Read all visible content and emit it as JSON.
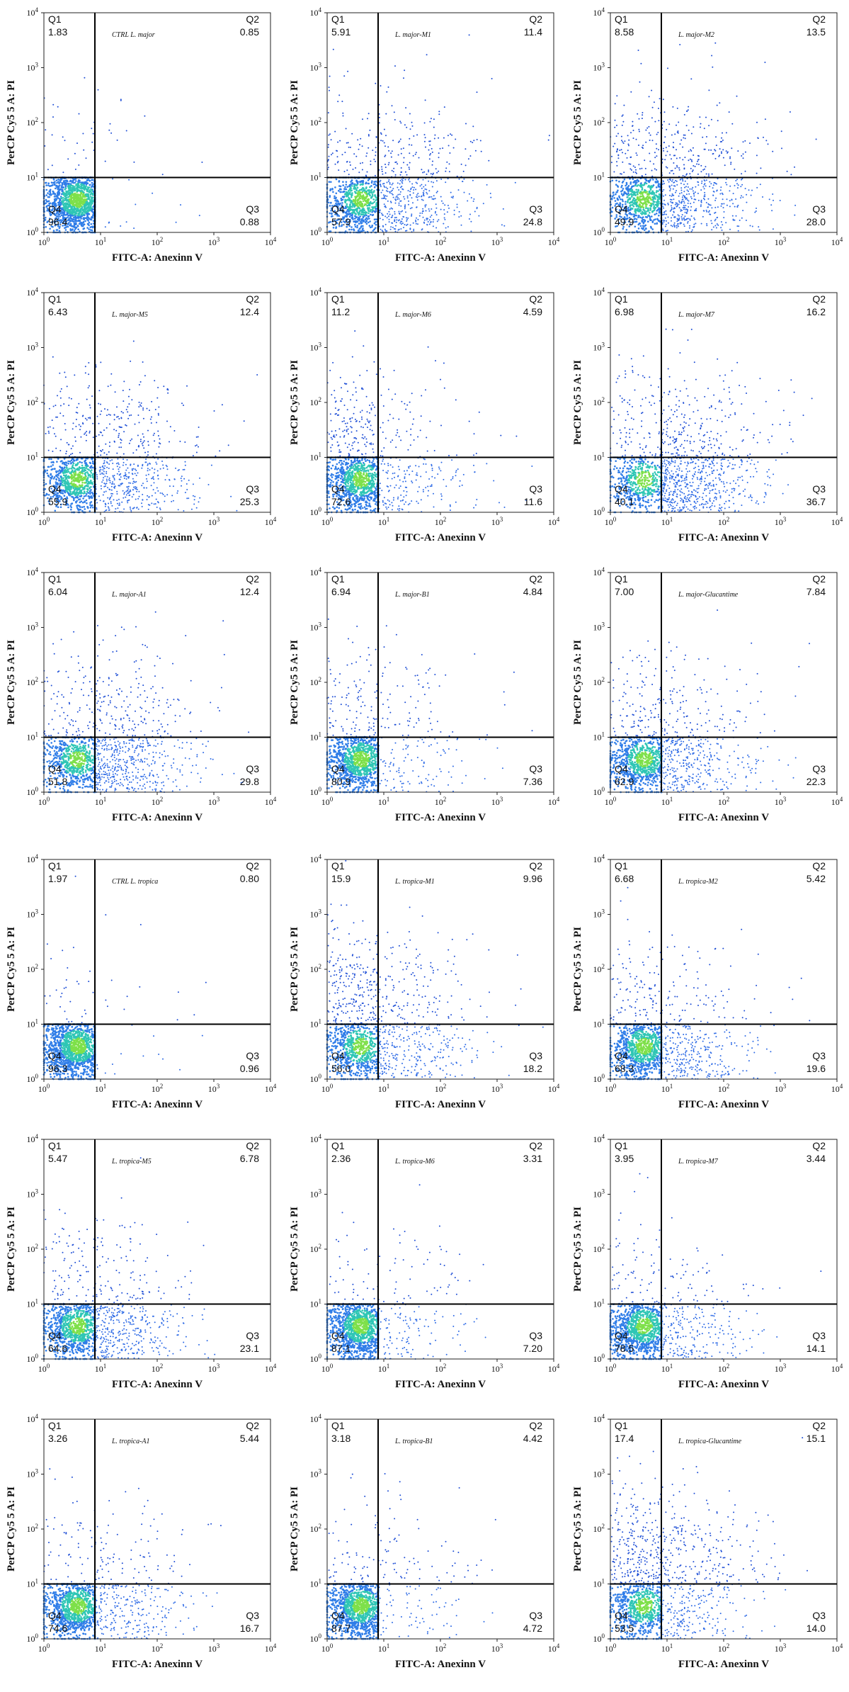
{
  "chart_data": [
    {
      "type": "scatter",
      "sample": "CTRL L. major",
      "xlabel": "FITC-A: Anexinn V",
      "ylabel": "PerCP Cy5 5 A: PI",
      "quadrant_labels": {
        "q1": "Q1",
        "q2": "Q2",
        "q3": "Q3",
        "q4": "Q4"
      },
      "quadrants": {
        "q1": "1.83",
        "q2": "0.85",
        "q3": "0.88",
        "q4": "96.4"
      },
      "x_ticks": [
        "10^0",
        "10^1",
        "10^2",
        "10^3",
        "10^4"
      ],
      "y_ticks": [
        "10^0",
        "10^1",
        "10^2",
        "10^3",
        "10^4"
      ]
    },
    {
      "type": "scatter",
      "sample": "L. major-M1",
      "xlabel": "FITC-A: Anexinn V",
      "ylabel": "PerCP Cy5 5 A: PI",
      "quadrant_labels": {
        "q1": "Q1",
        "q2": "Q2",
        "q3": "Q3",
        "q4": "Q4"
      },
      "quadrants": {
        "q1": "5.91",
        "q2": "11.4",
        "q3": "24.8",
        "q4": "57.9"
      },
      "x_ticks": [
        "10^0",
        "10^1",
        "10^2",
        "10^3",
        "10^4"
      ],
      "y_ticks": [
        "10^0",
        "10^1",
        "10^2",
        "10^3",
        "10^4"
      ]
    },
    {
      "type": "scatter",
      "sample": "L. major-M2",
      "xlabel": "FITC-A: Anexinn V",
      "ylabel": "PerCP Cy5 5 A: PI",
      "quadrant_labels": {
        "q1": "Q1",
        "q2": "Q2",
        "q3": "Q3",
        "q4": "Q4"
      },
      "quadrants": {
        "q1": "8.58",
        "q2": "13.5",
        "q3": "28.0",
        "q4": "49.9"
      },
      "x_ticks": [
        "10^0",
        "10^1",
        "10^2",
        "10^3",
        "10^4"
      ],
      "y_ticks": [
        "10^0",
        "10^1",
        "10^2",
        "10^3",
        "10^4"
      ]
    },
    {
      "type": "scatter",
      "sample": "L. major-M5",
      "xlabel": "FITC-A: Anexinn V",
      "ylabel": "PerCP Cy5 5 A: PI",
      "quadrant_labels": {
        "q1": "Q1",
        "q2": "Q2",
        "q3": "Q3",
        "q4": "Q4"
      },
      "quadrants": {
        "q1": "6.43",
        "q2": "12.4",
        "q3": "25.3",
        "q4": "55.9"
      },
      "x_ticks": [
        "10^0",
        "10^1",
        "10^2",
        "10^3",
        "10^4"
      ],
      "y_ticks": [
        "10^0",
        "10^1",
        "10^2",
        "10^3",
        "10^4"
      ]
    },
    {
      "type": "scatter",
      "sample": "L. major-M6",
      "xlabel": "FITC-A: Anexinn V",
      "ylabel": "PerCP Cy5 5 A: PI",
      "quadrant_labels": {
        "q1": "Q1",
        "q2": "Q2",
        "q3": "Q3",
        "q4": "Q4"
      },
      "quadrants": {
        "q1": "11.2",
        "q2": "4.59",
        "q3": "11.6",
        "q4": "72.6"
      },
      "x_ticks": [
        "10^0",
        "10^1",
        "10^2",
        "10^3",
        "10^4"
      ],
      "y_ticks": [
        "10^0",
        "10^1",
        "10^2",
        "10^3",
        "10^4"
      ]
    },
    {
      "type": "scatter",
      "sample": "L. major-M7",
      "xlabel": "FITC-A: Anexinn V",
      "ylabel": "PerCP Cy5 5 A: PI",
      "quadrant_labels": {
        "q1": "Q1",
        "q2": "Q2",
        "q3": "Q3",
        "q4": "Q4"
      },
      "quadrants": {
        "q1": "6.98",
        "q2": "16.2",
        "q3": "36.7",
        "q4": "40.1"
      },
      "x_ticks": [
        "10^0",
        "10^1",
        "10^2",
        "10^3",
        "10^4"
      ],
      "y_ticks": [
        "10^0",
        "10^1",
        "10^2",
        "10^3",
        "10^4"
      ]
    },
    {
      "type": "scatter",
      "sample": "L. major-A1",
      "xlabel": "FITC-A: Anexinn V",
      "ylabel": "PerCP Cy5 5 A: PI",
      "quadrant_labels": {
        "q1": "Q1",
        "q2": "Q2",
        "q3": "Q3",
        "q4": "Q4"
      },
      "quadrants": {
        "q1": "6.04",
        "q2": "12.4",
        "q3": "29.8",
        "q4": "51.8"
      },
      "x_ticks": [
        "10^0",
        "10^1",
        "10^2",
        "10^3",
        "10^4"
      ],
      "y_ticks": [
        "10^0",
        "10^1",
        "10^2",
        "10^3",
        "10^4"
      ]
    },
    {
      "type": "scatter",
      "sample": "L. major-B1",
      "xlabel": "FITC-A: Anexinn V",
      "ylabel": "PerCP Cy5 5 A: PI",
      "quadrant_labels": {
        "q1": "Q1",
        "q2": "Q2",
        "q3": "Q3",
        "q4": "Q4"
      },
      "quadrants": {
        "q1": "6.94",
        "q2": "4.84",
        "q3": "7.36",
        "q4": "80.9"
      },
      "x_ticks": [
        "10^0",
        "10^1",
        "10^2",
        "10^3",
        "10^4"
      ],
      "y_ticks": [
        "10^0",
        "10^1",
        "10^2",
        "10^3",
        "10^4"
      ]
    },
    {
      "type": "scatter",
      "sample": "L. major-Glucantime",
      "xlabel": "FITC-A: Anexinn V",
      "ylabel": "PerCP Cy5 5 A: PI",
      "quadrant_labels": {
        "q1": "Q1",
        "q2": "Q2",
        "q3": "Q3",
        "q4": "Q4"
      },
      "quadrants": {
        "q1": "7.00",
        "q2": "7.84",
        "q3": "22.3",
        "q4": "62.9"
      },
      "x_ticks": [
        "10^0",
        "10^1",
        "10^2",
        "10^3",
        "10^4"
      ],
      "y_ticks": [
        "10^0",
        "10^1",
        "10^2",
        "10^3",
        "10^4"
      ]
    },
    {
      "type": "scatter",
      "sample": "CTRL L. tropica",
      "xlabel": "FITC-A: Anexinn V",
      "ylabel": "PerCP Cy5 5 A: PI",
      "quadrant_labels": {
        "q1": "Q1",
        "q2": "Q2",
        "q3": "Q3",
        "q4": "Q4"
      },
      "quadrants": {
        "q1": "1.97",
        "q2": "0.80",
        "q3": "0.96",
        "q4": "96.3"
      },
      "x_ticks": [
        "10^0",
        "10^1",
        "10^2",
        "10^3",
        "10^4"
      ],
      "y_ticks": [
        "10^0",
        "10^1",
        "10^2",
        "10^3",
        "10^4"
      ]
    },
    {
      "type": "scatter",
      "sample": "L. tropica-M1",
      "xlabel": "FITC-A: Anexinn V",
      "ylabel": "PerCP Cy5 5 A: PI",
      "quadrant_labels": {
        "q1": "Q1",
        "q2": "Q2",
        "q3": "Q3",
        "q4": "Q4"
      },
      "quadrants": {
        "q1": "15.9",
        "q2": "9.96",
        "q3": "18.2",
        "q4": "56.0"
      },
      "x_ticks": [
        "10^0",
        "10^1",
        "10^2",
        "10^3",
        "10^4"
      ],
      "y_ticks": [
        "10^0",
        "10^1",
        "10^2",
        "10^3",
        "10^4"
      ]
    },
    {
      "type": "scatter",
      "sample": "L. tropica-M2",
      "xlabel": "FITC-A: Anexinn V",
      "ylabel": "PerCP Cy5 5 A: PI",
      "quadrant_labels": {
        "q1": "Q1",
        "q2": "Q2",
        "q3": "Q3",
        "q4": "Q4"
      },
      "quadrants": {
        "q1": "6.68",
        "q2": "5.42",
        "q3": "19.6",
        "q4": "68.3"
      },
      "x_ticks": [
        "10^0",
        "10^1",
        "10^2",
        "10^3",
        "10^4"
      ],
      "y_ticks": [
        "10^0",
        "10^1",
        "10^2",
        "10^3",
        "10^4"
      ]
    },
    {
      "type": "scatter",
      "sample": "L. tropica-M5",
      "xlabel": "FITC-A: Anexinn V",
      "ylabel": "PerCP Cy5 5 A: PI",
      "quadrant_labels": {
        "q1": "Q1",
        "q2": "Q2",
        "q3": "Q3",
        "q4": "Q4"
      },
      "quadrants": {
        "q1": "5.47",
        "q2": "6.78",
        "q3": "23.1",
        "q4": "64.6"
      },
      "x_ticks": [
        "10^0",
        "10^1",
        "10^2",
        "10^3",
        "10^4"
      ],
      "y_ticks": [
        "10^0",
        "10^1",
        "10^2",
        "10^3",
        "10^4"
      ]
    },
    {
      "type": "scatter",
      "sample": "L. tropica-M6",
      "xlabel": "FITC-A: Anexinn V",
      "ylabel": "PerCP Cy5 5 A: PI",
      "quadrant_labels": {
        "q1": "Q1",
        "q2": "Q2",
        "q3": "Q3",
        "q4": "Q4"
      },
      "quadrants": {
        "q1": "2.36",
        "q2": "3.31",
        "q3": "7.20",
        "q4": "87.1"
      },
      "x_ticks": [
        "10^0",
        "10^1",
        "10^2",
        "10^3",
        "10^4"
      ],
      "y_ticks": [
        "10^0",
        "10^1",
        "10^2",
        "10^3",
        "10^4"
      ]
    },
    {
      "type": "scatter",
      "sample": "L. tropica-M7",
      "xlabel": "FITC-A: Anexinn V",
      "ylabel": "PerCP Cy5 5 A: PI",
      "quadrant_labels": {
        "q1": "Q1",
        "q2": "Q2",
        "q3": "Q3",
        "q4": "Q4"
      },
      "quadrants": {
        "q1": "3.95",
        "q2": "3.44",
        "q3": "14.1",
        "q4": "78.5"
      },
      "x_ticks": [
        "10^0",
        "10^1",
        "10^2",
        "10^3",
        "10^4"
      ],
      "y_ticks": [
        "10^0",
        "10^1",
        "10^2",
        "10^3",
        "10^4"
      ]
    },
    {
      "type": "scatter",
      "sample": "L. tropica-A1",
      "xlabel": "FITC-A: Anexinn V",
      "ylabel": "PerCP Cy5 5 A: PI",
      "quadrant_labels": {
        "q1": "Q1",
        "q2": "Q2",
        "q3": "Q3",
        "q4": "Q4"
      },
      "quadrants": {
        "q1": "3.26",
        "q2": "5.44",
        "q3": "16.7",
        "q4": "74.6"
      },
      "x_ticks": [
        "10^0",
        "10^1",
        "10^2",
        "10^3",
        "10^4"
      ],
      "y_ticks": [
        "10^0",
        "10^1",
        "10^2",
        "10^3",
        "10^4"
      ]
    },
    {
      "type": "scatter",
      "sample": "L. tropica-B1",
      "xlabel": "FITC-A: Anexinn V",
      "ylabel": "PerCP Cy5 5 A: PI",
      "quadrant_labels": {
        "q1": "Q1",
        "q2": "Q2",
        "q3": "Q3",
        "q4": "Q4"
      },
      "quadrants": {
        "q1": "3.18",
        "q2": "4.42",
        "q3": "4.72",
        "q4": "87.7"
      },
      "x_ticks": [
        "10^0",
        "10^1",
        "10^2",
        "10^3",
        "10^4"
      ],
      "y_ticks": [
        "10^0",
        "10^1",
        "10^2",
        "10^3",
        "10^4"
      ]
    },
    {
      "type": "scatter",
      "sample": "L. tropica-Glucantime",
      "xlabel": "FITC-A: Anexinn V",
      "ylabel": "PerCP Cy5 5 A: PI",
      "quadrant_labels": {
        "q1": "Q1",
        "q2": "Q2",
        "q3": "Q3",
        "q4": "Q4"
      },
      "quadrants": {
        "q1": "17.4",
        "q2": "15.1",
        "q3": "14.0",
        "q4": "53.5"
      },
      "x_ticks": [
        "10^0",
        "10^1",
        "10^2",
        "10^3",
        "10^4"
      ],
      "y_ticks": [
        "10^0",
        "10^1",
        "10^2",
        "10^3",
        "10^4"
      ]
    }
  ]
}
